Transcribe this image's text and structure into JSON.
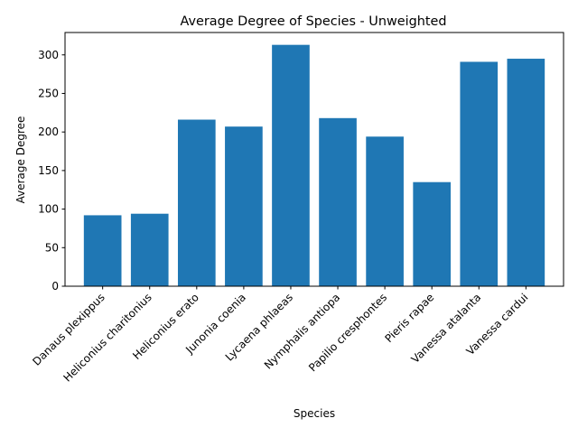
{
  "chart_data": {
    "type": "bar",
    "title": "Average Degree of Species - Unweighted",
    "xlabel": "Species",
    "ylabel": "Average Degree",
    "categories": [
      "Danaus plexippus",
      "Heliconius charitonius",
      "Heliconius erato",
      "Junonia coenia",
      "Lycaena phlaeas",
      "Nymphalis antiopa",
      "Papilio cresphontes",
      "Pieris rapae",
      "Vanessa atalanta",
      "Vanessa cardui"
    ],
    "values": [
      92,
      94,
      216,
      207,
      313,
      218,
      194,
      135,
      291,
      295
    ],
    "ylim": [
      0,
      329
    ],
    "yticks": [
      0,
      50,
      100,
      150,
      200,
      250,
      300
    ],
    "bar_color": "#1f77b4",
    "grid": false,
    "legend": "none"
  }
}
